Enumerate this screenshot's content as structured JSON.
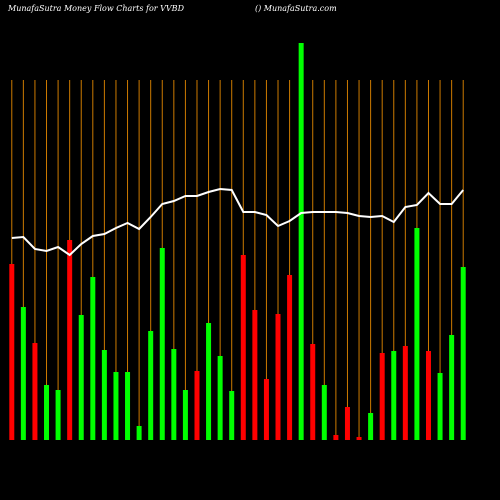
{
  "chart_data": {
    "type": "bar",
    "title": "MunafaSutra  Money Flow  Charts for VVBD",
    "subtitle": "() MunafaSutra.com",
    "values": [
      176,
      133,
      97,
      55,
      50,
      200,
      125,
      163,
      90,
      68,
      68,
      14,
      109,
      192,
      91,
      50,
      69,
      117,
      84,
      49,
      185,
      130,
      61,
      126,
      165,
      397,
      96,
      55,
      5,
      33,
      3,
      27,
      87,
      89,
      94,
      212,
      89,
      67,
      105,
      173
    ],
    "bar_colors": [
      "#ff0000",
      "#00ff00",
      "#ff0000",
      "#00ff00",
      "#00ff00",
      "#ff0000",
      "#00ff00",
      "#00ff00",
      "#00ff00",
      "#00ff00",
      "#00ff00",
      "#00ff00",
      "#00ff00",
      "#00ff00",
      "#00ff00",
      "#00ff00",
      "#ff0000",
      "#00ff00",
      "#00ff00",
      "#00ff00",
      "#ff0000",
      "#ff0000",
      "#ff0000",
      "#ff0000",
      "#ff0000",
      "#00ff00",
      "#ff0000",
      "#00ff00",
      "#ff0000",
      "#ff0000",
      "#ff0000",
      "#00ff00",
      "#ff0000",
      "#00ff00",
      "#ff0000",
      "#00ff00",
      "#ff0000",
      "#00ff00",
      "#00ff00",
      "#00ff00"
    ],
    "line": {
      "color": "#ffffff",
      "values": [
        202,
        203,
        191,
        189,
        193,
        185,
        196,
        204,
        206,
        212,
        217,
        211,
        223,
        236,
        239,
        244,
        244,
        248,
        251,
        250,
        228,
        228,
        225,
        214,
        219,
        227,
        228,
        228,
        228,
        227,
        224,
        223,
        224,
        218,
        233,
        235,
        247,
        236,
        236,
        250
      ]
    },
    "ylim": [
      0,
      400
    ],
    "gridline_color": "#cc7a00"
  }
}
